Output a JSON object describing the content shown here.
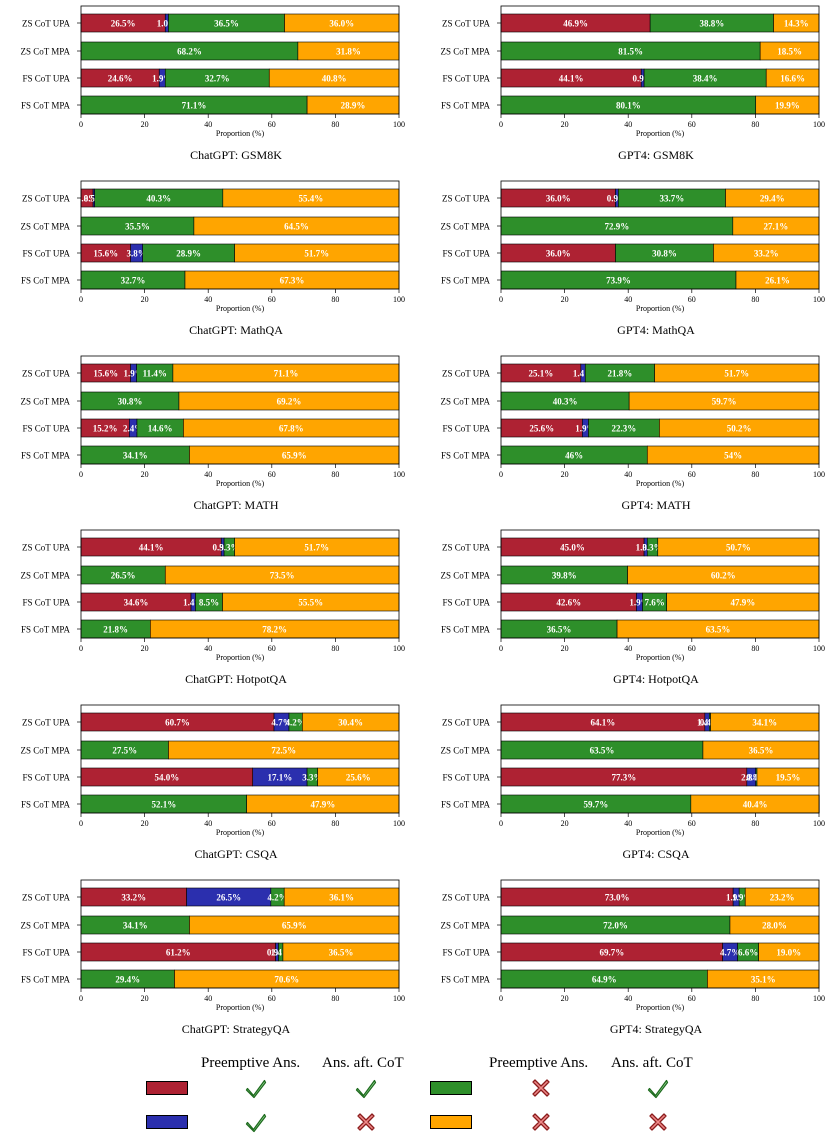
{
  "axis": {
    "xlabel": "Proportion (%)",
    "ticks": [
      "0",
      "20",
      "40",
      "60",
      "80",
      "100"
    ]
  },
  "rows": [
    "ZS CoT UPA",
    "ZS CoT MPA",
    "FS CoT UPA",
    "FS CoT MPA"
  ],
  "colors": {
    "preempt_correct_cot_correct": "#ae2233",
    "preempt_correct_cot_wrong": "#2b2fae",
    "preempt_wrong_cot_correct": "#2e8f2a",
    "preempt_wrong_cot_wrong": "#ffa500"
  },
  "chart_data": [
    {
      "type": "bar",
      "orientation": "horizontal",
      "stacked": true,
      "title": "ChatGPT: GSM8K",
      "xlabel": "Proportion (%)",
      "xlim": [
        0,
        100
      ],
      "categories": [
        "ZS CoT UPA",
        "ZS CoT MPA",
        "FS CoT UPA",
        "FS CoT MPA"
      ],
      "series": [
        {
          "name": "Preemptive correct, CoT correct",
          "values": [
            26.5,
            null,
            24.6,
            null
          ],
          "labels": [
            "26.5%",
            "",
            "24.6%",
            ""
          ]
        },
        {
          "name": "Preemptive correct, CoT wrong",
          "values": [
            1.0,
            null,
            1.9,
            null
          ],
          "labels": [
            "1.0%",
            "",
            "1.9%",
            ""
          ]
        },
        {
          "name": "Preemptive wrong, CoT correct",
          "values": [
            36.5,
            68.2,
            32.7,
            71.1
          ],
          "labels": [
            "36.5%",
            "68.2%",
            "32.7%",
            "71.1%"
          ]
        },
        {
          "name": "Preemptive wrong, CoT wrong",
          "values": [
            36.0,
            31.8,
            40.8,
            28.9
          ],
          "labels": [
            "36.0%",
            "31.8%",
            "40.8%",
            "28.9%"
          ]
        }
      ]
    },
    {
      "type": "bar",
      "orientation": "horizontal",
      "stacked": true,
      "title": "GPT4: GSM8K",
      "xlabel": "Proportion (%)",
      "xlim": [
        0,
        100
      ],
      "categories": [
        "ZS CoT UPA",
        "ZS CoT MPA",
        "FS CoT UPA",
        "FS CoT MPA"
      ],
      "series": [
        {
          "name": "Preemptive correct, CoT correct",
          "values": [
            46.9,
            null,
            44.1,
            null
          ],
          "labels": [
            "46.9%",
            "",
            "44.1%",
            ""
          ]
        },
        {
          "name": "Preemptive correct, CoT wrong",
          "values": [
            null,
            null,
            0.9,
            null
          ],
          "labels": [
            "",
            "",
            "0.9%",
            ""
          ]
        },
        {
          "name": "Preemptive wrong, CoT correct",
          "values": [
            38.8,
            81.5,
            38.4,
            80.1
          ],
          "labels": [
            "38.8%",
            "81.5%",
            "38.4%",
            "80.1%"
          ]
        },
        {
          "name": "Preemptive wrong, CoT wrong",
          "values": [
            14.3,
            18.5,
            16.6,
            19.9
          ],
          "labels": [
            "14.3%",
            "18.5%",
            "16.6%",
            "19.9%"
          ]
        }
      ]
    },
    {
      "type": "bar",
      "orientation": "horizontal",
      "stacked": true,
      "title": "ChatGPT: MathQA",
      "xlabel": "Proportion (%)",
      "xlim": [
        0,
        100
      ],
      "categories": [
        "ZS CoT UPA",
        "ZS CoT MPA",
        "FS CoT UPA",
        "FS CoT MPA"
      ],
      "series": [
        {
          "name": "Preemptive correct, CoT correct",
          "values": [
            3.8,
            null,
            15.6,
            null
          ],
          "labels": [
            "3.8%",
            "",
            "15.6%",
            ""
          ]
        },
        {
          "name": "Preemptive correct, CoT wrong",
          "values": [
            0.5,
            null,
            3.8,
            null
          ],
          "labels": [
            "0.5%",
            "",
            "3.8%",
            ""
          ]
        },
        {
          "name": "Preemptive wrong, CoT correct",
          "values": [
            40.3,
            35.5,
            28.9,
            32.7
          ],
          "labels": [
            "40.3%",
            "35.5%",
            "28.9%",
            "32.7%"
          ]
        },
        {
          "name": "Preemptive wrong, CoT wrong",
          "values": [
            55.4,
            64.5,
            51.7,
            67.3
          ],
          "labels": [
            "55.4%",
            "64.5%",
            "51.7%",
            "67.3%"
          ]
        }
      ]
    },
    {
      "type": "bar",
      "orientation": "horizontal",
      "stacked": true,
      "title": "GPT4: MathQA",
      "xlabel": "Proportion (%)",
      "xlim": [
        0,
        100
      ],
      "categories": [
        "ZS CoT UPA",
        "ZS CoT MPA",
        "FS CoT UPA",
        "FS CoT MPA"
      ],
      "series": [
        {
          "name": "Preemptive correct, CoT correct",
          "values": [
            36.0,
            null,
            36.0,
            null
          ],
          "labels": [
            "36.0%",
            "",
            "36.0%",
            ""
          ]
        },
        {
          "name": "Preemptive correct, CoT wrong",
          "values": [
            0.9,
            null,
            null,
            null
          ],
          "labels": [
            "0.9%",
            "",
            "",
            ""
          ]
        },
        {
          "name": "Preemptive wrong, CoT correct",
          "values": [
            33.7,
            72.9,
            30.8,
            73.9
          ],
          "labels": [
            "33.7%",
            "72.9%",
            "30.8%",
            "73.9%"
          ]
        },
        {
          "name": "Preemptive wrong, CoT wrong",
          "values": [
            29.4,
            27.1,
            33.2,
            26.1
          ],
          "labels": [
            "29.4%",
            "27.1%",
            "33.2%",
            "26.1%"
          ]
        }
      ]
    },
    {
      "type": "bar",
      "orientation": "horizontal",
      "stacked": true,
      "title": "ChatGPT: MATH",
      "xlabel": "Proportion (%)",
      "xlim": [
        0,
        100
      ],
      "categories": [
        "ZS CoT UPA",
        "ZS CoT MPA",
        "FS CoT UPA",
        "FS CoT MPA"
      ],
      "series": [
        {
          "name": "Preemptive correct, CoT correct",
          "values": [
            15.6,
            null,
            15.2,
            null
          ],
          "labels": [
            "15.6%",
            "",
            "15.2%",
            ""
          ]
        },
        {
          "name": "Preemptive correct, CoT wrong",
          "values": [
            1.9,
            null,
            2.4,
            null
          ],
          "labels": [
            "1.9%",
            "",
            "2.4%",
            ""
          ]
        },
        {
          "name": "Preemptive wrong, CoT correct",
          "values": [
            11.4,
            30.8,
            14.6,
            34.1
          ],
          "labels": [
            "11.4%",
            "30.8%",
            "14.6%",
            "34.1%"
          ]
        },
        {
          "name": "Preemptive wrong, CoT wrong",
          "values": [
            71.1,
            69.2,
            67.8,
            65.9
          ],
          "labels": [
            "71.1%",
            "69.2%",
            "67.8%",
            "65.9%"
          ]
        }
      ]
    },
    {
      "type": "bar",
      "orientation": "horizontal",
      "stacked": true,
      "title": "GPT4: MATH",
      "xlabel": "Proportion (%)",
      "xlim": [
        0,
        100
      ],
      "categories": [
        "ZS CoT UPA",
        "ZS CoT MPA",
        "FS CoT UPA",
        "FS CoT MPA"
      ],
      "series": [
        {
          "name": "Preemptive correct, CoT correct",
          "values": [
            25.1,
            null,
            25.6,
            null
          ],
          "labels": [
            "25.1%",
            "",
            "25.6%",
            ""
          ]
        },
        {
          "name": "Preemptive correct, CoT wrong",
          "values": [
            1.4,
            null,
            1.9,
            null
          ],
          "labels": [
            "1.4%",
            "",
            "1.9%",
            ""
          ]
        },
        {
          "name": "Preemptive wrong, CoT correct",
          "values": [
            21.8,
            40.3,
            22.3,
            46
          ],
          "labels": [
            "21.8%",
            "40.3%",
            "22.3%",
            "46%"
          ]
        },
        {
          "name": "Preemptive wrong, CoT wrong",
          "values": [
            51.7,
            59.7,
            50.2,
            54
          ],
          "labels": [
            "51.7%",
            "59.7%",
            "50.2%",
            "54%"
          ]
        }
      ]
    },
    {
      "type": "bar",
      "orientation": "horizontal",
      "stacked": true,
      "title": "ChatGPT: HotpotQA",
      "xlabel": "Proportion (%)",
      "xlim": [
        0,
        100
      ],
      "categories": [
        "ZS CoT UPA",
        "ZS CoT MPA",
        "FS CoT UPA",
        "FS CoT MPA"
      ],
      "series": [
        {
          "name": "Preemptive correct, CoT correct",
          "values": [
            44.1,
            null,
            34.6,
            null
          ],
          "labels": [
            "44.1%",
            "",
            "34.6%",
            ""
          ]
        },
        {
          "name": "Preemptive correct, CoT wrong",
          "values": [
            0.9,
            null,
            1.4,
            null
          ],
          "labels": [
            "0.9%",
            "",
            "1.4%",
            ""
          ]
        },
        {
          "name": "Preemptive wrong, CoT correct",
          "values": [
            3.3,
            26.5,
            8.5,
            21.8
          ],
          "labels": [
            "3.3%",
            "26.5%",
            "8.5%",
            "21.8%"
          ]
        },
        {
          "name": "Preemptive wrong, CoT wrong",
          "values": [
            51.7,
            73.5,
            55.5,
            78.2
          ],
          "labels": [
            "51.7%",
            "73.5%",
            "55.5%",
            "78.2%"
          ]
        }
      ]
    },
    {
      "type": "bar",
      "orientation": "horizontal",
      "stacked": true,
      "title": "GPT4: HotpotQA",
      "xlabel": "Proportion (%)",
      "xlim": [
        0,
        100
      ],
      "categories": [
        "ZS CoT UPA",
        "ZS CoT MPA",
        "FS CoT UPA",
        "FS CoT MPA"
      ],
      "series": [
        {
          "name": "Preemptive correct, CoT correct",
          "values": [
            45.0,
            null,
            42.6,
            null
          ],
          "labels": [
            "45.0%",
            "",
            "42.6%",
            ""
          ]
        },
        {
          "name": "Preemptive correct, CoT wrong",
          "values": [
            1.0,
            null,
            1.9,
            null
          ],
          "labels": [
            "1.0%",
            "",
            "1.9%",
            ""
          ]
        },
        {
          "name": "Preemptive wrong, CoT correct",
          "values": [
            3.3,
            39.8,
            7.6,
            36.5
          ],
          "labels": [
            "3.3%",
            "39.8%",
            "7.6%",
            "36.5%"
          ]
        },
        {
          "name": "Preemptive wrong, CoT wrong",
          "values": [
            50.7,
            60.2,
            47.9,
            63.5
          ],
          "labels": [
            "50.7%",
            "60.2%",
            "47.9%",
            "63.5%"
          ]
        }
      ]
    },
    {
      "type": "bar",
      "orientation": "horizontal",
      "stacked": true,
      "title": "ChatGPT: CSQA",
      "xlabel": "Proportion (%)",
      "xlim": [
        0,
        100
      ],
      "categories": [
        "ZS CoT UPA",
        "ZS CoT MPA",
        "FS CoT UPA",
        "FS CoT MPA"
      ],
      "series": [
        {
          "name": "Preemptive correct, CoT correct",
          "values": [
            60.7,
            null,
            54.0,
            null
          ],
          "labels": [
            "60.7%",
            "",
            "54.0%",
            ""
          ]
        },
        {
          "name": "Preemptive correct, CoT wrong",
          "values": [
            4.7,
            null,
            17.1,
            null
          ],
          "labels": [
            "4.7%",
            "",
            "17.1%",
            ""
          ]
        },
        {
          "name": "Preemptive wrong, CoT correct",
          "values": [
            4.2,
            27.5,
            3.3,
            52.1
          ],
          "labels": [
            "4.2%",
            "27.5%",
            "3.3%",
            "52.1%"
          ]
        },
        {
          "name": "Preemptive wrong, CoT wrong",
          "values": [
            30.4,
            72.5,
            25.6,
            47.9
          ],
          "labels": [
            "30.4%",
            "72.5%",
            "25.6%",
            "47.9%"
          ]
        }
      ]
    },
    {
      "type": "bar",
      "orientation": "horizontal",
      "stacked": true,
      "title": "GPT4: CSQA",
      "xlabel": "Proportion (%)",
      "xlim": [
        0,
        100
      ],
      "categories": [
        "ZS CoT UPA",
        "ZS CoT MPA",
        "FS CoT UPA",
        "FS CoT MPA"
      ],
      "series": [
        {
          "name": "Preemptive correct, CoT correct",
          "values": [
            64.1,
            null,
            77.3,
            null
          ],
          "labels": [
            "64.1%",
            "",
            "77.3%",
            ""
          ]
        },
        {
          "name": "Preemptive correct, CoT wrong",
          "values": [
            1.4,
            null,
            2.8,
            null
          ],
          "labels": [
            "1.4%",
            "",
            "2.8%",
            ""
          ]
        },
        {
          "name": "Preemptive wrong, CoT correct",
          "values": [
            0.4,
            63.5,
            0.4,
            59.7
          ],
          "labels": [
            "0.4%",
            "63.5%",
            "0.4%",
            "59.7%"
          ]
        },
        {
          "name": "Preemptive wrong, CoT wrong",
          "values": [
            34.1,
            36.5,
            19.5,
            40.4
          ],
          "labels": [
            "34.1%",
            "36.5%",
            "19.5%",
            "40.4%"
          ]
        }
      ]
    },
    {
      "type": "bar",
      "orientation": "horizontal",
      "stacked": true,
      "title": "ChatGPT: StrategyQA",
      "xlabel": "Proportion (%)",
      "xlim": [
        0,
        100
      ],
      "categories": [
        "ZS CoT UPA",
        "ZS CoT MPA",
        "FS CoT UPA",
        "FS CoT MPA"
      ],
      "series": [
        {
          "name": "Preemptive correct, CoT correct",
          "values": [
            33.2,
            null,
            61.2,
            null
          ],
          "labels": [
            "33.2%",
            "",
            "61.2%",
            ""
          ]
        },
        {
          "name": "Preemptive correct, CoT wrong",
          "values": [
            26.5,
            null,
            0.9,
            null
          ],
          "labels": [
            "26.5%",
            "",
            "0.9%",
            ""
          ]
        },
        {
          "name": "Preemptive wrong, CoT correct",
          "values": [
            4.2,
            34.1,
            1.4,
            29.4
          ],
          "labels": [
            "4.2%",
            "34.1%",
            "1.4%",
            "29.4%"
          ]
        },
        {
          "name": "Preemptive wrong, CoT wrong",
          "values": [
            36.1,
            65.9,
            36.5,
            70.6
          ],
          "labels": [
            "36.1%",
            "65.9%",
            "36.5%",
            "70.6%"
          ]
        }
      ]
    },
    {
      "type": "bar",
      "orientation": "horizontal",
      "stacked": true,
      "title": "GPT4: StrategyQA",
      "xlabel": "Proportion (%)",
      "xlim": [
        0,
        100
      ],
      "categories": [
        "ZS CoT UPA",
        "ZS CoT MPA",
        "FS CoT UPA",
        "FS CoT MPA"
      ],
      "series": [
        {
          "name": "Preemptive correct, CoT correct",
          "values": [
            73.0,
            null,
            69.7,
            null
          ],
          "labels": [
            "73.0%",
            "",
            "69.7%",
            ""
          ]
        },
        {
          "name": "Preemptive correct, CoT wrong",
          "values": [
            1.9,
            null,
            4.7,
            null
          ],
          "labels": [
            "1.9%",
            "",
            "4.7%",
            ""
          ]
        },
        {
          "name": "Preemptive wrong, CoT correct",
          "values": [
            1.9,
            72.0,
            6.6,
            64.9
          ],
          "labels": [
            "1.9%",
            "72.0%",
            "6.6%",
            "64.9%"
          ]
        },
        {
          "name": "Preemptive wrong, CoT wrong",
          "values": [
            23.2,
            28.0,
            19.0,
            35.1
          ],
          "labels": [
            "23.2%",
            "28.0%",
            "19.0%",
            "35.1%"
          ]
        }
      ]
    }
  ],
  "legend": {
    "group1": {
      "header_preemptive": "Preemptive Ans.",
      "header_cot": "Ans. aft. CoT"
    },
    "group2": {
      "header_preemptive": "Preemptive Ans.",
      "header_cot": "Ans. aft. CoT"
    },
    "entries": [
      {
        "color": "#ae2233",
        "preemptive": "check-icon",
        "cot": "check-icon"
      },
      {
        "color": "#2b2fae",
        "preemptive": "check-icon",
        "cot": "cross-icon"
      },
      {
        "color": "#2e8f2a",
        "preemptive": "cross-icon",
        "cot": "check-icon"
      },
      {
        "color": "#ffa500",
        "preemptive": "cross-icon",
        "cot": "cross-icon"
      }
    ]
  }
}
